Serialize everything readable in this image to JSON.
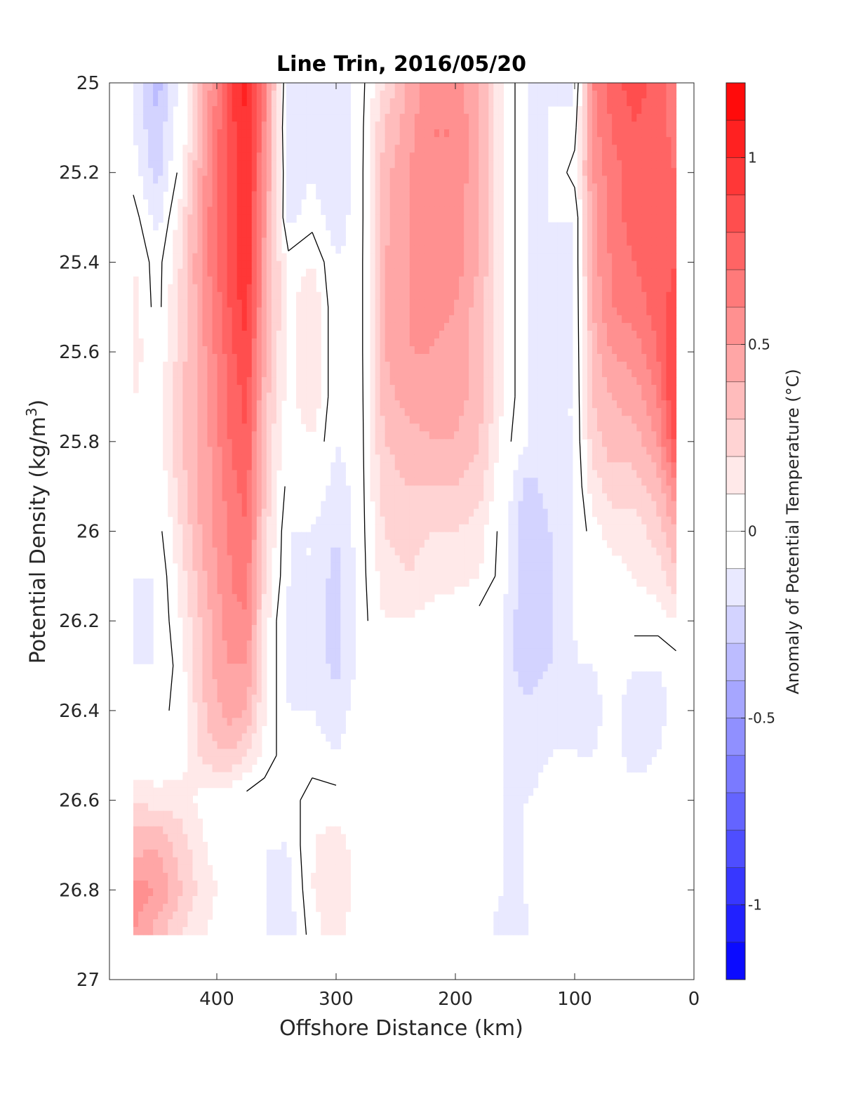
{
  "chart_data": {
    "type": "heatmap",
    "title": "Line Trin, 2016/05/20",
    "xlabel": "Offshore Distance (km)",
    "ylabel_text": "Potential Density (kg/m",
    "ylabel_sup": "3",
    "ylabel_close": ")",
    "xlim": [
      490,
      0
    ],
    "ylim": [
      25,
      27
    ],
    "x_reversed": true,
    "y_reversed": true,
    "x_ticks": [
      400,
      300,
      200,
      100,
      0
    ],
    "x_tick_labels": [
      "400",
      "300",
      "200",
      "100",
      "0"
    ],
    "y_ticks": [
      25,
      25.2,
      25.4,
      25.6,
      25.8,
      26,
      26.2,
      26.4,
      26.6,
      26.8,
      27
    ],
    "y_tick_labels": [
      "25",
      "25.2",
      "25.4",
      "25.6",
      "25.8",
      "26",
      "26.2",
      "26.4",
      "26.6",
      "26.8",
      "27"
    ],
    "colorbar": {
      "label": "Anomaly of Potential Temperature (°C)",
      "min": -1.2,
      "max": 1.2,
      "step": 0.1,
      "ticks": [
        1,
        0.5,
        0,
        -0.5,
        -1
      ],
      "tick_labels": [
        "1",
        "0.5",
        "0",
        "-0.5",
        "-1"
      ],
      "colormap": "blue-white-red"
    },
    "contour_levels": [
      0
    ],
    "contour_color": "#000000",
    "grid": false,
    "x": [
      470,
      450,
      430,
      410,
      390,
      375,
      360,
      340,
      320,
      300,
      280,
      260,
      240,
      220,
      200,
      180,
      160,
      140,
      120,
      100,
      85,
      70,
      50,
      30,
      15
    ],
    "y": [
      25.0,
      25.1,
      25.2,
      25.3,
      25.4,
      25.5,
      25.6,
      25.7,
      25.8,
      25.9,
      26.0,
      26.1,
      26.2,
      26.3,
      26.4,
      26.5,
      26.6,
      26.7,
      26.8,
      26.9
    ],
    "z": [
      [
        -0.1,
        -0.35,
        -0.05,
        0.4,
        0.85,
        1.05,
        0.6,
        -0.15,
        -0.2,
        -0.2,
        -0.05,
        0.2,
        0.4,
        0.6,
        0.55,
        0.4,
        0.1,
        -0.1,
        -0.1,
        -0.15,
        0.6,
        0.75,
        0.85,
        0.75,
        0.6
      ],
      [
        -0.1,
        -0.3,
        0.0,
        0.45,
        0.85,
        1.0,
        0.6,
        -0.2,
        -0.15,
        -0.2,
        -0.05,
        0.3,
        0.45,
        0.6,
        0.6,
        0.4,
        0.1,
        -0.1,
        -0.1,
        -0.05,
        0.55,
        0.7,
        0.8,
        0.75,
        0.65
      ],
      [
        -0.05,
        -0.25,
        0.05,
        0.5,
        0.85,
        1.0,
        0.55,
        -0.15,
        -0.1,
        -0.2,
        -0.05,
        0.35,
        0.5,
        0.6,
        0.6,
        0.4,
        0.1,
        -0.1,
        -0.1,
        0.05,
        0.5,
        0.65,
        0.75,
        0.75,
        0.7
      ],
      [
        0.05,
        -0.15,
        0.15,
        0.55,
        0.85,
        1.0,
        0.5,
        -0.15,
        -0.05,
        -0.15,
        -0.05,
        0.35,
        0.5,
        0.6,
        0.55,
        0.4,
        0.1,
        -0.1,
        -0.1,
        -0.1,
        0.45,
        0.65,
        0.75,
        0.75,
        0.75
      ],
      [
        0.1,
        -0.05,
        0.2,
        0.55,
        0.85,
        1.0,
        0.45,
        0.05,
        0.1,
        -0.1,
        -0.05,
        0.4,
        0.5,
        0.55,
        0.55,
        0.4,
        0.1,
        -0.1,
        -0.1,
        -0.1,
        0.45,
        0.6,
        0.7,
        0.75,
        0.8
      ],
      [
        0.15,
        -0.05,
        0.25,
        0.5,
        0.8,
        0.95,
        0.45,
        0.05,
        0.2,
        -0.1,
        -0.05,
        0.4,
        0.5,
        0.55,
        0.5,
        0.35,
        0.1,
        -0.1,
        -0.1,
        -0.1,
        0.4,
        0.6,
        0.65,
        0.75,
        0.85
      ],
      [
        0.15,
        0.0,
        0.25,
        0.5,
        0.75,
        0.9,
        0.4,
        0.05,
        0.2,
        -0.1,
        -0.05,
        0.4,
        0.5,
        0.5,
        0.45,
        0.35,
        0.1,
        -0.1,
        -0.1,
        -0.1,
        0.35,
        0.5,
        0.55,
        0.7,
        0.9
      ],
      [
        0.1,
        0.05,
        0.3,
        0.45,
        0.7,
        0.85,
        0.35,
        0.05,
        0.2,
        -0.1,
        -0.05,
        0.35,
        0.45,
        0.45,
        0.45,
        0.35,
        0.1,
        -0.1,
        -0.1,
        -0.1,
        0.3,
        0.4,
        0.45,
        0.6,
        0.95
      ],
      [
        0.05,
        0.05,
        0.3,
        0.45,
        0.7,
        0.8,
        0.3,
        0.0,
        0.1,
        -0.1,
        -0.05,
        0.3,
        0.35,
        0.4,
        0.4,
        0.3,
        0.05,
        -0.1,
        -0.1,
        -0.1,
        0.25,
        0.35,
        0.35,
        0.5,
        0.85
      ],
      [
        0.0,
        0.0,
        0.25,
        0.45,
        0.65,
        0.75,
        0.3,
        -0.05,
        0.0,
        -0.15,
        -0.05,
        0.25,
        0.3,
        0.3,
        0.3,
        0.25,
        0.0,
        -0.25,
        -0.15,
        -0.1,
        0.15,
        0.25,
        0.25,
        0.35,
        0.6
      ],
      [
        -0.05,
        -0.05,
        0.2,
        0.45,
        0.6,
        0.7,
        0.25,
        -0.1,
        -0.1,
        -0.2,
        -0.05,
        0.2,
        0.25,
        0.2,
        0.2,
        0.15,
        -0.05,
        -0.3,
        -0.2,
        -0.1,
        0.05,
        0.15,
        0.15,
        0.25,
        0.4
      ],
      [
        -0.1,
        -0.1,
        0.15,
        0.4,
        0.6,
        0.65,
        0.2,
        -0.1,
        -0.1,
        -0.25,
        -0.05,
        0.15,
        0.2,
        0.15,
        0.15,
        0.1,
        -0.05,
        -0.3,
        -0.2,
        -0.1,
        0.0,
        0.05,
        0.1,
        0.15,
        0.3
      ],
      [
        -0.1,
        -0.1,
        0.1,
        0.35,
        0.55,
        0.6,
        0.15,
        -0.15,
        -0.1,
        -0.25,
        -0.05,
        0.1,
        0.1,
        0.05,
        0.0,
        -0.05,
        -0.1,
        -0.3,
        -0.2,
        -0.1,
        0.0,
        0.0,
        0.05,
        0.05,
        0.1
      ],
      [
        -0.1,
        -0.1,
        0.05,
        0.35,
        0.5,
        0.5,
        0.15,
        -0.15,
        -0.1,
        -0.25,
        -0.05,
        0.0,
        0.0,
        0.0,
        -0.05,
        -0.05,
        -0.1,
        -0.3,
        -0.2,
        -0.1,
        -0.1,
        -0.05,
        -0.1,
        -0.1,
        -0.05
      ],
      [
        -0.1,
        -0.05,
        0.05,
        0.3,
        0.45,
        0.4,
        0.1,
        -0.1,
        -0.1,
        -0.15,
        -0.05,
        0.0,
        0.0,
        0.0,
        -0.05,
        -0.05,
        -0.1,
        -0.15,
        -0.1,
        -0.1,
        -0.15,
        -0.05,
        -0.15,
        -0.15,
        -0.05
      ],
      [
        0.0,
        0.0,
        0.05,
        0.25,
        0.3,
        0.2,
        0.05,
        -0.05,
        -0.05,
        -0.1,
        -0.05,
        0.0,
        0.0,
        0.0,
        -0.05,
        -0.05,
        -0.1,
        -0.15,
        -0.1,
        -0.1,
        -0.1,
        -0.05,
        -0.15,
        -0.1,
        0.0
      ],
      [
        0.2,
        0.15,
        0.15,
        0.05,
        0.0,
        -0.05,
        -0.05,
        -0.05,
        0.05,
        0.05,
        0.0,
        0.0,
        0.0,
        0.0,
        0.0,
        -0.05,
        -0.1,
        -0.1,
        -0.05,
        -0.05,
        -0.05,
        0.0,
        -0.05,
        0.0,
        0.0
      ],
      [
        0.35,
        0.4,
        0.25,
        0.1,
        0.0,
        -0.05,
        -0.1,
        -0.1,
        0.1,
        0.15,
        0.05,
        0.0,
        0.0,
        0.0,
        0.0,
        -0.05,
        -0.1,
        -0.1,
        -0.05,
        0.0,
        0.0,
        0.0,
        0.0,
        0.0,
        0.0
      ],
      [
        0.55,
        0.5,
        0.3,
        0.15,
        0.05,
        -0.05,
        -0.1,
        -0.15,
        0.1,
        0.2,
        0.05,
        0.0,
        0.0,
        0.0,
        0.0,
        -0.05,
        -0.1,
        -0.1,
        -0.05,
        0.0,
        0.0,
        0.0,
        0.0,
        0.0,
        0.0
      ],
      [
        0.5,
        0.35,
        0.2,
        0.1,
        0.0,
        -0.05,
        -0.1,
        -0.15,
        0.05,
        0.15,
        0.0,
        0.0,
        0.0,
        0.0,
        0.0,
        -0.05,
        -0.15,
        -0.1,
        -0.05,
        0.0,
        0.0,
        0.0,
        0.0,
        0.0,
        0.0
      ]
    ]
  }
}
